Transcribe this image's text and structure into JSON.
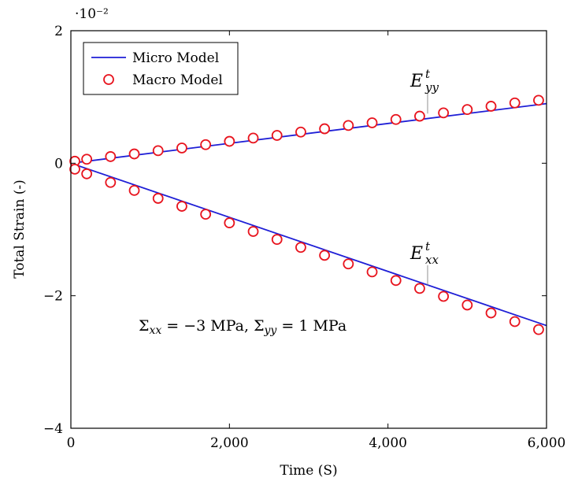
{
  "chart_data": {
    "type": "line",
    "xlabel": "Time (S)",
    "ylabel": "Total Strain (-)",
    "y_scale_label": "·10⁻²",
    "xlim": [
      0,
      6000
    ],
    "ylim": [
      -4,
      2
    ],
    "x_ticks": [
      0,
      2000,
      4000,
      6000
    ],
    "x_tick_labels": [
      "0",
      "2,000",
      "4,000",
      "6,000"
    ],
    "y_ticks": [
      -4,
      -2,
      0,
      2
    ],
    "y_tick_labels": [
      "−4",
      "−2",
      "0",
      "2"
    ],
    "grid": false,
    "legend_position": "top-left",
    "legend": [
      {
        "name": "Micro Model",
        "marker": "line",
        "color": "#1f1fd6"
      },
      {
        "name": "Macro Model",
        "marker": "circle",
        "color": "#e8141e"
      }
    ],
    "series": [
      {
        "name": "Micro Model",
        "style": "line",
        "color": "#1f1fd6",
        "lines": [
          {
            "component": "E_yy",
            "x": [
              0,
              6000
            ],
            "y": [
              0.0,
              0.9
            ]
          },
          {
            "component": "E_xx",
            "x": [
              0,
              6000
            ],
            "y": [
              0.0,
              -2.45
            ]
          }
        ]
      },
      {
        "name": "Macro Model",
        "style": "circle",
        "color": "#e8141e",
        "groups": [
          {
            "component": "E_yy",
            "x": [
              50,
              200,
              500,
              800,
              1100,
              1400,
              1700,
              2000,
              2300,
              2600,
              2900,
              3200,
              3500,
              3800,
              4100,
              4400,
              4700,
              5000,
              5300,
              5600,
              5900
            ],
            "y": [
              0.03,
              0.06,
              0.1,
              0.14,
              0.19,
              0.23,
              0.28,
              0.33,
              0.38,
              0.42,
              0.47,
              0.52,
              0.57,
              0.61,
              0.66,
              0.71,
              0.76,
              0.81,
              0.86,
              0.91,
              0.95
            ]
          },
          {
            "component": "E_xx",
            "x": [
              50,
              200,
              500,
              800,
              1100,
              1400,
              1700,
              2000,
              2300,
              2600,
              2900,
              3200,
              3500,
              3800,
              4100,
              4400,
              4700,
              5000,
              5300,
              5600,
              5900
            ],
            "y": [
              -0.09,
              -0.16,
              -0.29,
              -0.41,
              -0.53,
              -0.65,
              -0.77,
              -0.9,
              -1.03,
              -1.15,
              -1.27,
              -1.39,
              -1.52,
              -1.64,
              -1.77,
              -1.89,
              -2.01,
              -2.14,
              -2.26,
              -2.39,
              -2.51
            ]
          }
        ]
      }
    ],
    "annotations": [
      {
        "base": "E",
        "sup": "t",
        "sub": "yy",
        "x": 4500,
        "y": 0.75
      },
      {
        "base": "E",
        "sup": "t",
        "sub": "xx",
        "x": 4500,
        "y": -1.85
      }
    ],
    "condition_text": "Σxx = −3 MPa, Σyy = 1 MPa"
  }
}
